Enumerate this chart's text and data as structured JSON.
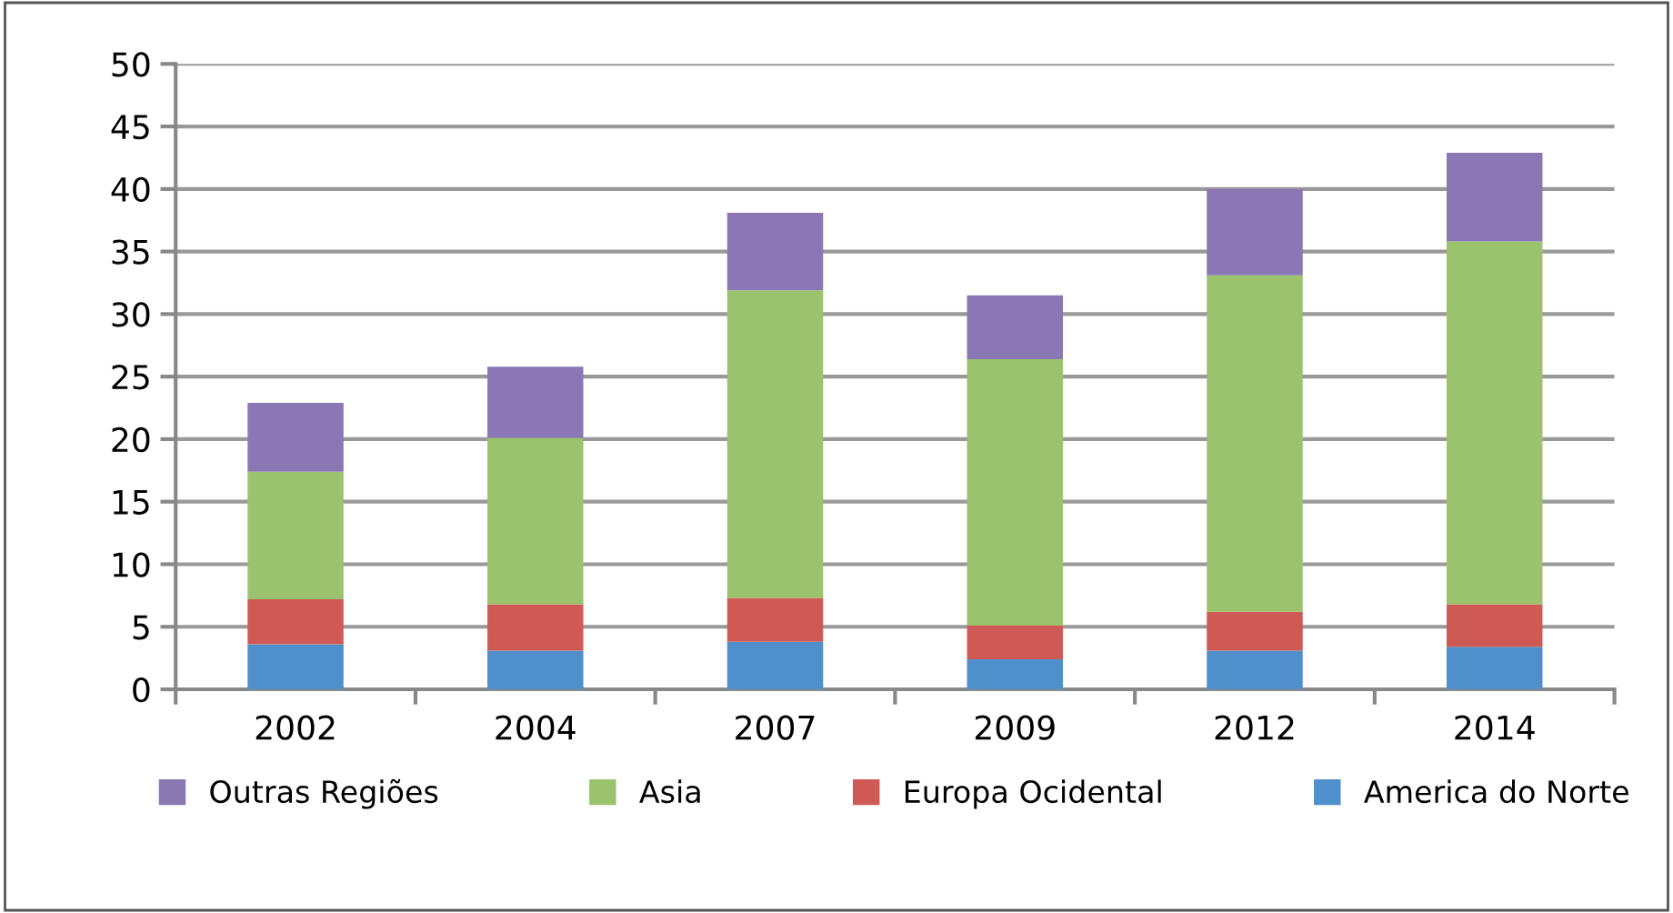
{
  "chart_data": {
    "type": "bar",
    "stacked": true,
    "categories": [
      "2002",
      "2004",
      "2007",
      "2009",
      "2012",
      "2014"
    ],
    "series": [
      {
        "name": "America do Norte",
        "color": "#4f8fcc",
        "values": [
          3.6,
          3.1,
          3.8,
          2.4,
          3.1,
          3.4
        ]
      },
      {
        "name": "Europa Ocidental",
        "color": "#cf5a55",
        "values": [
          3.6,
          3.7,
          3.5,
          2.7,
          3.1,
          3.4
        ]
      },
      {
        "name": "Asia",
        "color": "#9bc26c",
        "values": [
          10.2,
          13.3,
          24.6,
          21.3,
          26.9,
          29.0
        ]
      },
      {
        "name": "Outras Regiões",
        "color": "#8a78b4",
        "values": [
          5.5,
          5.7,
          6.2,
          5.1,
          6.9,
          7.1
        ]
      }
    ],
    "ylim": [
      0,
      50
    ],
    "yticks": [
      0,
      5,
      10,
      15,
      20,
      25,
      30,
      35,
      40,
      45,
      50
    ],
    "grid": "y",
    "legend": "bottom"
  }
}
